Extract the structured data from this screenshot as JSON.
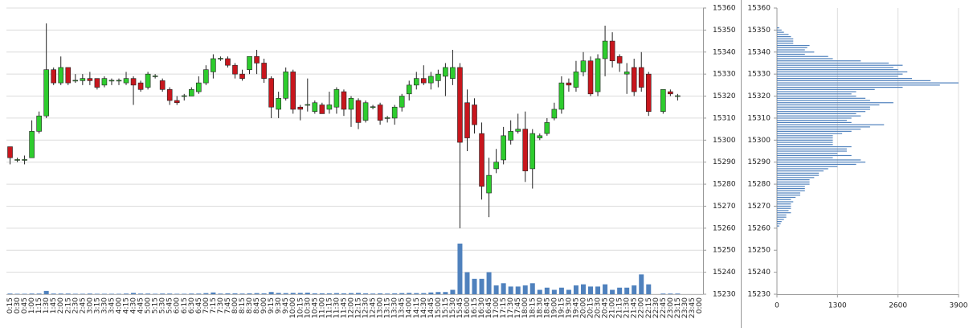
{
  "chart_data": [
    {
      "type": "candlestick",
      "categories": [
        "0:15",
        "0:30",
        "0:45",
        "1:00",
        "1:15",
        "1:30",
        "1:45",
        "2:00",
        "2:15",
        "2:30",
        "2:45",
        "3:00",
        "3:15",
        "3:30",
        "3:45",
        "4:00",
        "4:15",
        "4:30",
        "4:45",
        "5:00",
        "5:15",
        "5:30",
        "5:45",
        "6:00",
        "6:15",
        "6:30",
        "6:45",
        "7:00",
        "7:15",
        "7:30",
        "7:45",
        "8:00",
        "8:15",
        "8:30",
        "8:45",
        "9:00",
        "9:15",
        "9:30",
        "9:45",
        "10:00",
        "10:15",
        "10:30",
        "10:45",
        "11:00",
        "11:15",
        "11:30",
        "11:45",
        "12:00",
        "12:15",
        "12:30",
        "12:45",
        "13:00",
        "13:15",
        "13:30",
        "13:45",
        "14:00",
        "14:15",
        "14:30",
        "14:45",
        "15:00",
        "15:15",
        "15:30",
        "15:45",
        "16:00",
        "16:15",
        "16:30",
        "16:45",
        "17:00",
        "17:15",
        "17:30",
        "17:45",
        "18:00",
        "18:15",
        "18:30",
        "18:45",
        "19:00",
        "19:15",
        "19:30",
        "19:45",
        "20:00",
        "20:15",
        "20:30",
        "20:45",
        "21:00",
        "21:15",
        "21:30",
        "21:45",
        "22:00",
        "22:15",
        "22:30",
        "22:45",
        "23:00",
        "23:15",
        "23:30",
        "23:45",
        "0:00"
      ],
      "open": [
        15297,
        15291,
        15291,
        15292,
        15304,
        15311,
        15332,
        15326,
        15333,
        15327,
        15327,
        15328,
        15328,
        15325,
        15327,
        15327,
        15326,
        15328,
        15326,
        15324,
        15329,
        15327,
        15323,
        15318,
        15320,
        15320,
        15322,
        15326,
        15331,
        15337,
        15337,
        15334,
        15330,
        15332,
        15338,
        15335,
        15328,
        15314,
        15319,
        15331,
        15315,
        15316,
        15313,
        15316,
        15314,
        15315,
        15322,
        15314,
        15318,
        15309,
        15315,
        15316,
        15310,
        15310,
        15315,
        15321,
        15325,
        15328,
        15326,
        15327,
        15329,
        15328,
        15333,
        15317,
        15316,
        15303,
        15276,
        15287,
        15291,
        15300,
        15304,
        15305,
        15287,
        15301,
        15303,
        15310,
        15314,
        15326,
        15324,
        15331,
        15336,
        15322,
        15337,
        15345,
        15338,
        15330,
        15333,
        15333,
        15330,
        null,
        15313,
        15322,
        15320,
        null,
        null,
        null
      ],
      "high": [
        15297,
        15292,
        15293,
        15309,
        15313,
        15353,
        15333,
        15338,
        15333,
        15330,
        15330,
        15331,
        15328,
        15329,
        15328,
        15328,
        15331,
        15329,
        15327,
        15331,
        15330,
        15328,
        15324,
        15320,
        15321,
        15324,
        15329,
        15334,
        15339,
        15338,
        15338,
        15335,
        15332,
        15338,
        15341,
        15337,
        15329,
        15322,
        15333,
        15332,
        15316,
        15328,
        15318,
        15317,
        15322,
        15324,
        15323,
        15320,
        15319,
        15318,
        15316,
        15317,
        15311,
        15316,
        15321,
        15327,
        15331,
        15334,
        15331,
        15332,
        15335,
        15341,
        15335,
        15323,
        15319,
        15308,
        15292,
        15296,
        15306,
        15309,
        15312,
        15313,
        15305,
        15303,
        15310,
        15317,
        15329,
        15328,
        15336,
        15340,
        15338,
        15339,
        15352,
        15349,
        15339,
        15335,
        15337,
        15340,
        15331,
        null,
        15323,
        15323,
        15321,
        null,
        null,
        null
      ],
      "low": [
        15289,
        15290,
        15289,
        15292,
        15303,
        15310,
        15325,
        15325,
        15325,
        15326,
        15325,
        15325,
        15323,
        15324,
        15325,
        15325,
        15325,
        15316,
        15322,
        15323,
        15328,
        15322,
        15316,
        15316,
        15318,
        15320,
        15321,
        15325,
        15328,
        15336,
        15333,
        15328,
        15327,
        15330,
        15330,
        15326,
        15310,
        15310,
        15318,
        15312,
        15309,
        15313,
        15312,
        15312,
        15312,
        15312,
        15311,
        15306,
        15305,
        15308,
        15314,
        15307,
        15308,
        15307,
        15313,
        15318,
        15323,
        15325,
        15323,
        15324,
        15320,
        15325,
        15260,
        15295,
        15303,
        15273,
        15265,
        15285,
        15289,
        15298,
        15303,
        15281,
        15278,
        15300,
        15302,
        15309,
        15312,
        15322,
        15322,
        15329,
        15320,
        15320,
        15329,
        15333,
        15331,
        15321,
        15320,
        15322,
        15311,
        null,
        15312,
        15320,
        15318,
        null,
        null,
        null
      ],
      "close": [
        15292,
        15291,
        15291,
        15304,
        15311,
        15332,
        15326,
        15333,
        15326,
        15327,
        15328,
        15327,
        15324,
        15328,
        15327,
        15327,
        15328,
        15325,
        15323,
        15330,
        15329,
        15323,
        15318,
        15317,
        15320,
        15323,
        15326,
        15332,
        15337,
        15337,
        15334,
        15330,
        15328,
        15338,
        15335,
        15328,
        15315,
        15319,
        15331,
        15314,
        15314,
        15316,
        15317,
        15312,
        15316,
        15323,
        15314,
        15319,
        15308,
        15317,
        15315,
        15309,
        15310,
        15315,
        15320,
        15325,
        15328,
        15326,
        15329,
        15330,
        15333,
        15333,
        15299,
        15301,
        15307,
        15279,
        15284,
        15290,
        15302,
        15304,
        15305,
        15286,
        15303,
        15302,
        15308,
        15314,
        15326,
        15325,
        15331,
        15336,
        15321,
        15337,
        15345,
        15336,
        15335,
        15331,
        15322,
        15324,
        15313,
        null,
        15323,
        15321,
        15320,
        null,
        null,
        null
      ],
      "volume": [
        0.3,
        0.2,
        0.2,
        0.3,
        0.3,
        1.5,
        0.3,
        0.3,
        0.3,
        0.2,
        0.2,
        0.3,
        0.2,
        0.2,
        0.2,
        0.2,
        0.3,
        0.6,
        0.3,
        0.3,
        0.2,
        0.3,
        0.3,
        0.2,
        0.2,
        0.3,
        0.3,
        0.5,
        0.8,
        0.3,
        0.4,
        0.4,
        0.3,
        0.4,
        0.5,
        0.4,
        1,
        0.6,
        0.5,
        0.6,
        0.6,
        0.7,
        0.4,
        0.4,
        0.4,
        0.5,
        0.4,
        0.5,
        0.6,
        0.4,
        0.3,
        0.4,
        0.3,
        0.4,
        0.5,
        0.6,
        0.5,
        0.5,
        0.8,
        1,
        1,
        2,
        23,
        10,
        7,
        7,
        10,
        4,
        5,
        3.5,
        3.5,
        4,
        5,
        2,
        3,
        2,
        3,
        2,
        4,
        4.5,
        3.5,
        3.5,
        4.5,
        2,
        3,
        3,
        4,
        9,
        4.5,
        null,
        0.3,
        0.3,
        0.3,
        null,
        null,
        null
      ],
      "up_color": "#2ecc2e",
      "down_color": "#c8161d",
      "volume_color": "#4f81bd",
      "ylim": [
        15230,
        15360
      ],
      "yticks": [
        15230,
        15240,
        15250,
        15260,
        15270,
        15280,
        15290,
        15300,
        15310,
        15320,
        15330,
        15340,
        15350,
        15360
      ],
      "grid": true
    },
    {
      "type": "barh",
      "y": [
        15351,
        15350,
        15349,
        15348,
        15347,
        15346,
        15345,
        15344,
        15343,
        15342,
        15341,
        15340,
        15339,
        15338,
        15337,
        15336,
        15335,
        15334,
        15333,
        15332,
        15331,
        15330,
        15329,
        15328,
        15327,
        15326,
        15325,
        15324,
        15323,
        15322,
        15321,
        15320,
        15319,
        15318,
        15317,
        15316,
        15315,
        15314,
        15313,
        15312,
        15311,
        15310,
        15309,
        15308,
        15307,
        15306,
        15305,
        15304,
        15303,
        15302,
        15301,
        15300,
        15299,
        15298,
        15297,
        15296,
        15295,
        15294,
        15293,
        15292,
        15291,
        15290,
        15289,
        15288,
        15287,
        15286,
        15285,
        15284,
        15283,
        15282,
        15281,
        15280,
        15279,
        15278,
        15277,
        15276,
        15275,
        15274,
        15273,
        15272,
        15271,
        15270,
        15269,
        15268,
        15267,
        15266,
        15265,
        15264,
        15263,
        15262,
        15261
      ],
      "values": [
        50,
        100,
        150,
        250,
        300,
        350,
        350,
        350,
        700,
        650,
        600,
        800,
        600,
        1100,
        1200,
        1800,
        2400,
        2700,
        2500,
        2600,
        2800,
        2700,
        2600,
        2900,
        3300,
        3900,
        3500,
        2700,
        2100,
        1700,
        1600,
        1700,
        1900,
        2000,
        2500,
        2200,
        2000,
        2000,
        1900,
        1700,
        1800,
        1600,
        1500,
        1600,
        2300,
        2000,
        1800,
        1600,
        1400,
        1200,
        1200,
        1200,
        1200,
        1200,
        1600,
        1500,
        1500,
        1300,
        1600,
        1200,
        1800,
        1900,
        1700,
        1300,
        1100,
        1000,
        900,
        900,
        800,
        700,
        700,
        700,
        600,
        600,
        600,
        500,
        500,
        400,
        300,
        350,
        300,
        300,
        300,
        250,
        300,
        200,
        200,
        150,
        100,
        80,
        50
      ],
      "color": "#4f81bd",
      "xlim": [
        0,
        3900
      ],
      "xticks": [
        0,
        1300,
        2600,
        3900
      ],
      "ylim": [
        15230,
        15360
      ],
      "yticks": [
        15230,
        15240,
        15250,
        15260,
        15270,
        15280,
        15290,
        15300,
        15310,
        15320,
        15330,
        15340,
        15350,
        15360
      ],
      "grid": true
    }
  ]
}
